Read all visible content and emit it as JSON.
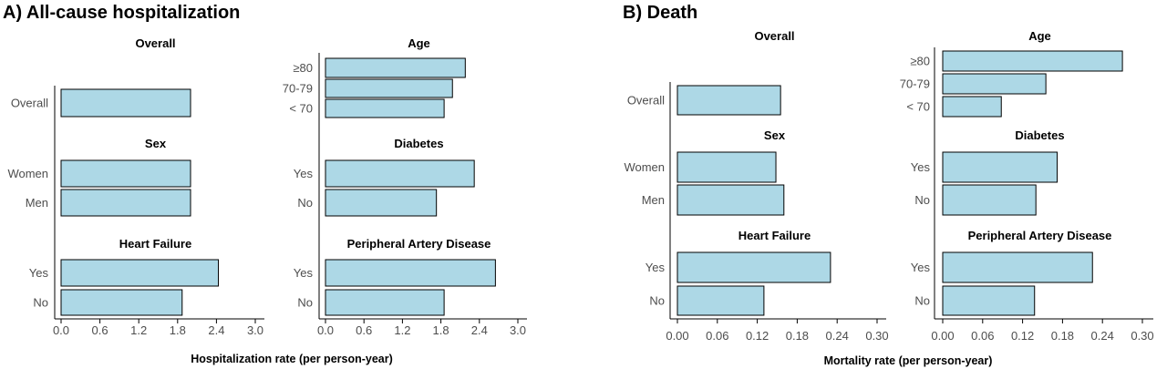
{
  "colors": {
    "bar_fill": "#add8e6",
    "bar_stroke": "#000000",
    "label_text": "#4d4d4d"
  },
  "chart_data": [
    {
      "type": "bar",
      "orientation": "horizontal",
      "title": "A) All-cause hospitalization",
      "xlabel": "Hospitalization rate (per person-year)",
      "xlim": [
        0,
        3.0
      ],
      "ticks": [
        "0.0",
        "0.6",
        "1.2",
        "1.8",
        "2.4",
        "3.0"
      ],
      "tick_values": [
        0,
        0.6,
        1.2,
        1.8,
        2.4,
        3.0
      ],
      "subplots": [
        {
          "title": "Overall",
          "categories": [
            "Overall"
          ],
          "values": [
            2.0
          ]
        },
        {
          "title": "Age",
          "categories": [
            "≥80",
            "70-79",
            "< 70"
          ],
          "values": [
            2.18,
            1.98,
            1.85
          ]
        },
        {
          "title": "Sex",
          "categories": [
            "Women",
            "Men"
          ],
          "values": [
            2.0,
            2.0
          ]
        },
        {
          "title": "Diabetes",
          "categories": [
            "Yes",
            "No"
          ],
          "values": [
            2.32,
            1.73
          ]
        },
        {
          "title": "Heart Failure",
          "categories": [
            "Yes",
            "No"
          ],
          "values": [
            2.43,
            1.87
          ]
        },
        {
          "title": "Peripheral Artery Disease",
          "categories": [
            "Yes",
            "No"
          ],
          "values": [
            2.65,
            1.85
          ]
        }
      ]
    },
    {
      "type": "bar",
      "orientation": "horizontal",
      "title": "B) Death",
      "xlabel": "Mortality rate (per person-year)",
      "xlim": [
        0,
        0.3
      ],
      "ticks": [
        "0.00",
        "0.06",
        "0.12",
        "0.18",
        "0.24",
        "0.30"
      ],
      "tick_values": [
        0,
        0.06,
        0.12,
        0.18,
        0.24,
        0.3
      ],
      "subplots": [
        {
          "title": "Overall",
          "categories": [
            "Overall"
          ],
          "values": [
            0.155
          ]
        },
        {
          "title": "Age",
          "categories": [
            "≥80",
            "70-79",
            "< 70"
          ],
          "values": [
            0.27,
            0.155,
            0.088
          ]
        },
        {
          "title": "Sex",
          "categories": [
            "Women",
            "Men"
          ],
          "values": [
            0.148,
            0.16
          ]
        },
        {
          "title": "Diabetes",
          "categories": [
            "Yes",
            "No"
          ],
          "values": [
            0.172,
            0.14
          ]
        },
        {
          "title": "Heart Failure",
          "categories": [
            "Yes",
            "No"
          ],
          "values": [
            0.23,
            0.13
          ]
        },
        {
          "title": "Peripheral Artery Disease",
          "categories": [
            "Yes",
            "No"
          ],
          "values": [
            0.225,
            0.138
          ]
        }
      ]
    }
  ]
}
